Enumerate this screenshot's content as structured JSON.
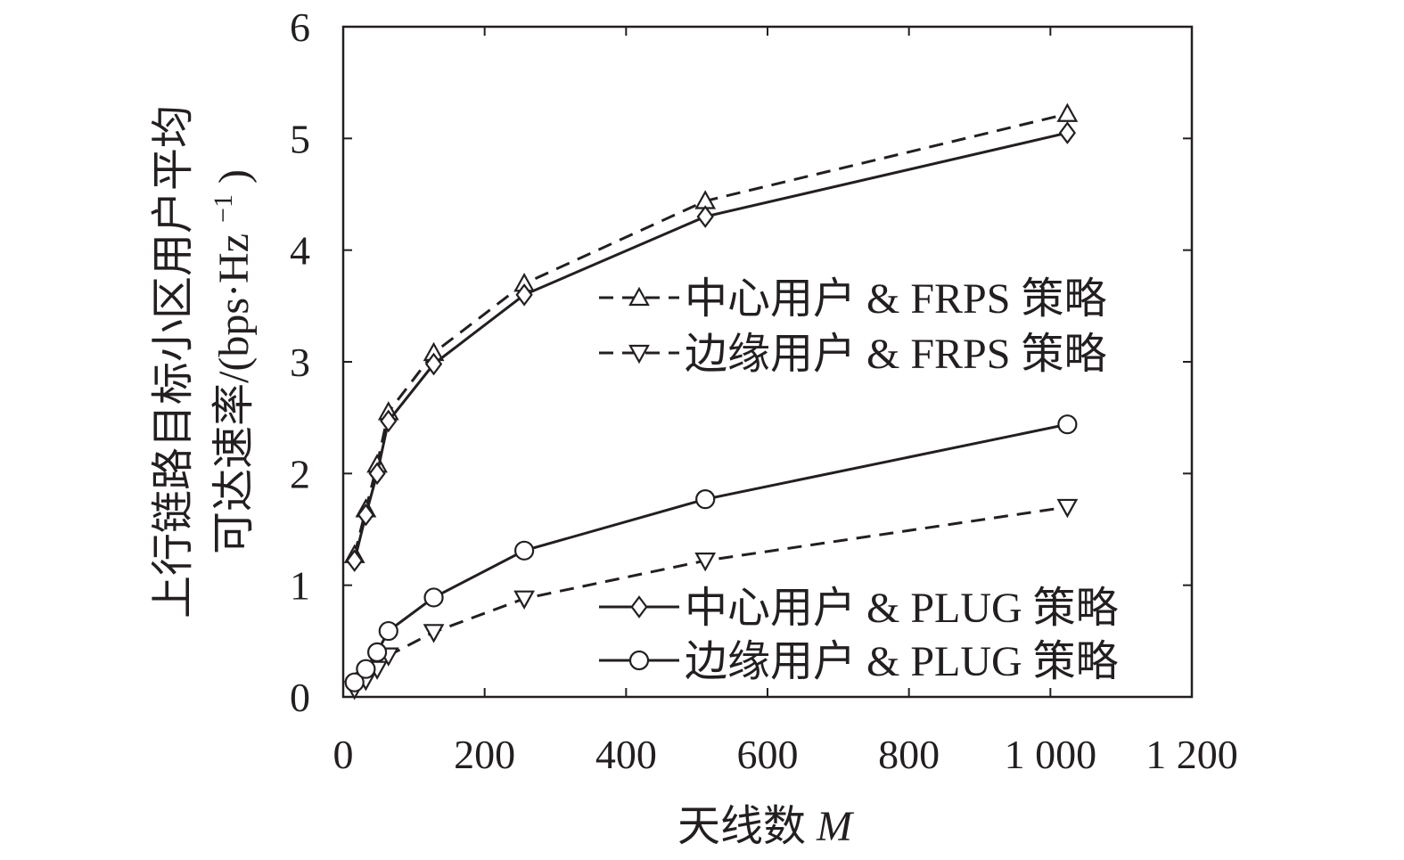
{
  "chart_data": {
    "type": "line",
    "xlabel": "天线数",
    "xlabel_var": "M",
    "ylabel_line1": "上行链路目标小区用户平均",
    "ylabel_line2": "可达速率/(bps·Hz",
    "ylabel_sup": "−1",
    "ylabel_close": ")",
    "xlim": [
      0,
      1200
    ],
    "ylim": [
      0,
      6
    ],
    "xticks": [
      0,
      200,
      400,
      600,
      800,
      1000,
      1200
    ],
    "xtick_labels": [
      "0",
      "200",
      "400",
      "600",
      "800",
      "1 000",
      "1 200"
    ],
    "yticks": [
      0,
      1,
      2,
      3,
      4,
      5,
      6
    ],
    "ytick_labels": [
      "0",
      "1",
      "2",
      "3",
      "4",
      "5",
      "6"
    ],
    "grid": false,
    "legend_placement": "right (two groups: upper-right and lower-right)",
    "colors": {
      "line": "#231f20",
      "background": "#ffffff"
    },
    "x": [
      16,
      32,
      48,
      64,
      128,
      256,
      512,
      1024
    ],
    "series": [
      {
        "name": "中心用户 & FRPS 策略",
        "marker": "triangle-up",
        "dash": "dashed",
        "values": [
          1.27,
          1.68,
          2.08,
          2.55,
          3.08,
          3.7,
          4.44,
          5.22
        ]
      },
      {
        "name": "边缘用户 & FRPS 策略",
        "marker": "triangle-down",
        "dash": "dashed",
        "values": [
          0.07,
          0.15,
          0.25,
          0.37,
          0.58,
          0.88,
          1.22,
          1.7
        ]
      },
      {
        "name": "中心用户 & PLUG 策略",
        "marker": "diamond",
        "dash": "solid",
        "values": [
          1.22,
          1.63,
          2.0,
          2.47,
          2.98,
          3.6,
          4.3,
          5.05
        ]
      },
      {
        "name": "边缘用户 & PLUG 策略",
        "marker": "circle",
        "dash": "solid",
        "values": [
          0.13,
          0.25,
          0.4,
          0.59,
          0.89,
          1.31,
          1.77,
          2.44
        ]
      }
    ]
  }
}
